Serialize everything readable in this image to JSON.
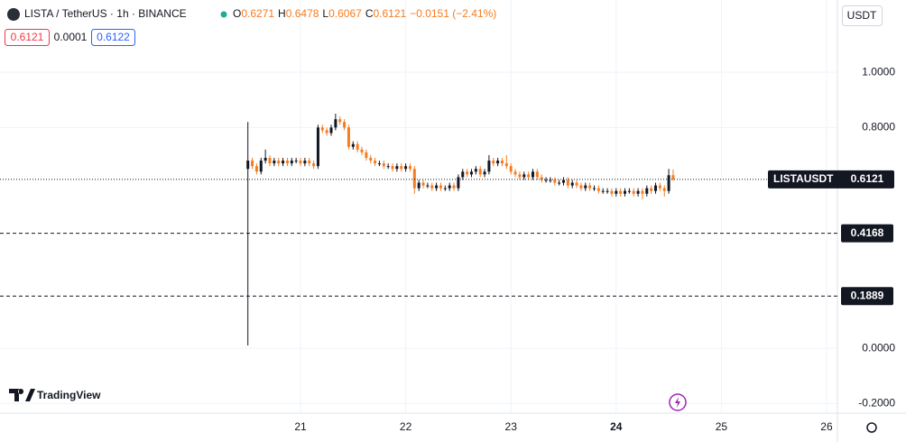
{
  "chart_data": {
    "type": "candlestick",
    "symbol": "LISTA / TetherUS · 1h · BINANCE",
    "ticker": "LISTAUSDT",
    "currency": "USDT",
    "ohlc_labels": [
      "O",
      "H",
      "L",
      "C"
    ],
    "change": "−0.0151 (−2.41%)",
    "sell": 0.6121,
    "spread": 0.0001,
    "buy": 0.6122,
    "up_color": "#131722",
    "down_color": "#f57c20",
    "x": [
      20.5,
      20.5417,
      20.5833,
      20.625,
      20.6667,
      20.7083,
      20.75,
      20.7917,
      20.8333,
      20.875,
      20.9167,
      20.9583,
      21,
      21.0417,
      21.0833,
      21.125,
      21.1667,
      21.2083,
      21.25,
      21.2917,
      21.3333,
      21.375,
      21.4167,
      21.4583,
      21.5,
      21.5417,
      21.5833,
      21.625,
      21.6667,
      21.7083,
      21.75,
      21.7917,
      21.8333,
      21.875,
      21.9167,
      21.9583,
      22,
      22.0417,
      22.0833,
      22.125,
      22.1667,
      22.2083,
      22.25,
      22.2917,
      22.3333,
      22.375,
      22.4167,
      22.4583,
      22.5,
      22.5417,
      22.5833,
      22.625,
      22.6667,
      22.7083,
      22.75,
      22.7917,
      22.8333,
      22.875,
      22.9167,
      22.9583,
      23,
      23.0417,
      23.0833,
      23.125,
      23.1667,
      23.2083,
      23.25,
      23.2917,
      23.3333,
      23.375,
      23.4167,
      23.4583,
      23.5,
      23.5417,
      23.5833,
      23.625,
      23.6667,
      23.7083,
      23.75,
      23.7917,
      23.8333,
      23.875,
      23.9167,
      23.9583,
      24,
      24.0417,
      24.0833,
      24.125,
      24.1667,
      24.2083,
      24.25,
      24.2917,
      24.3333,
      24.375,
      24.4167,
      24.4583,
      24.5,
      24.5417
    ],
    "open": [
      0.65,
      0.68,
      0.66,
      0.64,
      0.68,
      0.69,
      0.67,
      0.68,
      0.67,
      0.68,
      0.67,
      0.68,
      0.68,
      0.67,
      0.68,
      0.67,
      0.66,
      0.8,
      0.79,
      0.78,
      0.8,
      0.83,
      0.82,
      0.8,
      0.73,
      0.74,
      0.72,
      0.71,
      0.69,
      0.68,
      0.67,
      0.67,
      0.66,
      0.66,
      0.65,
      0.66,
      0.65,
      0.66,
      0.65,
      0.58,
      0.6,
      0.59,
      0.59,
      0.58,
      0.59,
      0.58,
      0.58,
      0.59,
      0.58,
      0.62,
      0.64,
      0.63,
      0.64,
      0.65,
      0.63,
      0.64,
      0.68,
      0.67,
      0.68,
      0.67,
      0.66,
      0.64,
      0.63,
      0.62,
      0.63,
      0.62,
      0.64,
      0.62,
      0.61,
      0.61,
      0.61,
      0.6,
      0.6,
      0.61,
      0.59,
      0.6,
      0.59,
      0.58,
      0.59,
      0.58,
      0.58,
      0.57,
      0.57,
      0.57,
      0.56,
      0.57,
      0.56,
      0.57,
      0.57,
      0.56,
      0.57,
      0.56,
      0.58,
      0.57,
      0.59,
      0.58,
      0.57,
      0.6271
    ],
    "high": [
      0.82,
      0.69,
      0.67,
      0.69,
      0.72,
      0.7,
      0.69,
      0.69,
      0.69,
      0.69,
      0.69,
      0.69,
      0.69,
      0.69,
      0.69,
      0.68,
      0.81,
      0.81,
      0.8,
      0.81,
      0.85,
      0.84,
      0.83,
      0.81,
      0.75,
      0.75,
      0.73,
      0.72,
      0.7,
      0.69,
      0.68,
      0.68,
      0.67,
      0.67,
      0.67,
      0.67,
      0.67,
      0.67,
      0.66,
      0.61,
      0.61,
      0.6,
      0.6,
      0.6,
      0.6,
      0.59,
      0.6,
      0.6,
      0.63,
      0.65,
      0.65,
      0.65,
      0.66,
      0.66,
      0.65,
      0.7,
      0.69,
      0.69,
      0.69,
      0.7,
      0.67,
      0.65,
      0.64,
      0.64,
      0.64,
      0.65,
      0.65,
      0.63,
      0.62,
      0.62,
      0.62,
      0.61,
      0.62,
      0.62,
      0.61,
      0.61,
      0.6,
      0.6,
      0.6,
      0.59,
      0.59,
      0.58,
      0.58,
      0.58,
      0.58,
      0.58,
      0.58,
      0.58,
      0.58,
      0.58,
      0.58,
      0.59,
      0.59,
      0.6,
      0.6,
      0.59,
      0.65,
      0.6478
    ],
    "low": [
      0.01,
      0.65,
      0.63,
      0.63,
      0.67,
      0.66,
      0.66,
      0.66,
      0.66,
      0.66,
      0.66,
      0.67,
      0.66,
      0.66,
      0.66,
      0.65,
      0.65,
      0.78,
      0.77,
      0.77,
      0.79,
      0.81,
      0.79,
      0.72,
      0.72,
      0.71,
      0.7,
      0.68,
      0.67,
      0.66,
      0.66,
      0.65,
      0.65,
      0.64,
      0.64,
      0.64,
      0.64,
      0.64,
      0.56,
      0.57,
      0.58,
      0.58,
      0.57,
      0.57,
      0.57,
      0.57,
      0.57,
      0.57,
      0.57,
      0.61,
      0.62,
      0.62,
      0.63,
      0.62,
      0.62,
      0.63,
      0.66,
      0.66,
      0.66,
      0.65,
      0.63,
      0.62,
      0.61,
      0.61,
      0.61,
      0.61,
      0.61,
      0.6,
      0.6,
      0.6,
      0.59,
      0.59,
      0.59,
      0.58,
      0.58,
      0.58,
      0.57,
      0.57,
      0.57,
      0.57,
      0.56,
      0.56,
      0.56,
      0.55,
      0.55,
      0.55,
      0.55,
      0.56,
      0.55,
      0.55,
      0.54,
      0.55,
      0.56,
      0.56,
      0.57,
      0.55,
      0.56,
      0.6067
    ],
    "close": [
      0.68,
      0.66,
      0.64,
      0.68,
      0.69,
      0.67,
      0.68,
      0.67,
      0.68,
      0.67,
      0.68,
      0.68,
      0.67,
      0.68,
      0.67,
      0.66,
      0.8,
      0.79,
      0.78,
      0.8,
      0.83,
      0.82,
      0.8,
      0.73,
      0.74,
      0.72,
      0.71,
      0.69,
      0.68,
      0.67,
      0.67,
      0.66,
      0.66,
      0.65,
      0.66,
      0.65,
      0.66,
      0.65,
      0.58,
      0.6,
      0.59,
      0.59,
      0.58,
      0.59,
      0.58,
      0.58,
      0.59,
      0.58,
      0.62,
      0.64,
      0.63,
      0.64,
      0.65,
      0.63,
      0.64,
      0.68,
      0.67,
      0.68,
      0.67,
      0.66,
      0.64,
      0.63,
      0.62,
      0.63,
      0.62,
      0.64,
      0.62,
      0.61,
      0.61,
      0.61,
      0.6,
      0.6,
      0.61,
      0.59,
      0.6,
      0.59,
      0.58,
      0.59,
      0.58,
      0.58,
      0.57,
      0.57,
      0.57,
      0.56,
      0.57,
      0.56,
      0.57,
      0.57,
      0.56,
      0.57,
      0.56,
      0.58,
      0.57,
      0.59,
      0.58,
      0.57,
      0.6271,
      0.6121
    ],
    "xlim": [
      18.144,
      26.103
    ],
    "xticks": [
      21,
      22,
      23,
      24,
      25,
      26
    ],
    "highlight_xtick": 24,
    "ylim": [
      -0.235,
      1.262
    ],
    "yticks": [
      {
        "value": 1,
        "label": "1.0000"
      },
      {
        "value": 0.8,
        "label": "0.8000"
      },
      {
        "value": 0,
        "label": "0.0000"
      },
      {
        "value": -0.2,
        "label": "-0.2000"
      }
    ],
    "hlines": [
      0.4168,
      0.1889
    ],
    "grid": true,
    "brand": "TradingView"
  }
}
